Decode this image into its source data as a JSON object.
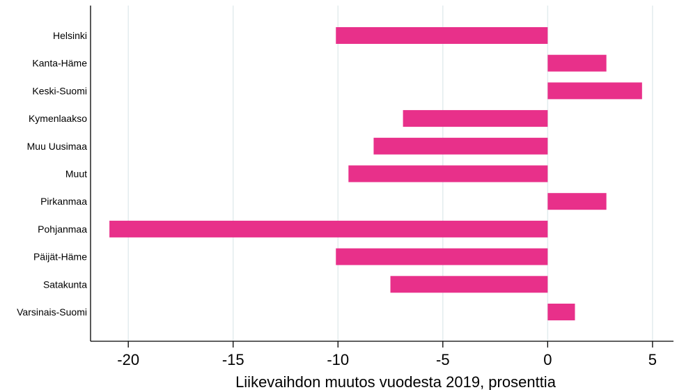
{
  "chart_data": {
    "type": "bar",
    "orientation": "horizontal",
    "categories": [
      "Helsinki",
      "Kanta-Häme",
      "Keski-Suomi",
      "Kymenlaakso",
      "Muu Uusimaa",
      "Muut",
      "Pirkanmaa",
      "Pohjanmaa",
      "Päijät-Häme",
      "Satakunta",
      "Varsinais-Suomi"
    ],
    "values": [
      -10.1,
      2.8,
      4.5,
      -6.9,
      -8.3,
      -9.5,
      2.8,
      -20.9,
      -10.1,
      -7.5,
      1.3
    ],
    "xlabel": "Liikevaihdon muutos vuodesta 2019, prosenttia",
    "ylabel": "",
    "xlim": [
      -21.8,
      6.0
    ],
    "xticks": [
      -20,
      -15,
      -10,
      -5,
      0,
      5
    ],
    "xtick_labels": [
      "-20",
      "-15",
      "-10",
      "-5",
      "0",
      "5"
    ],
    "grid": true,
    "bar_color": "#e8308a",
    "grid_color": "#e3ecee"
  }
}
